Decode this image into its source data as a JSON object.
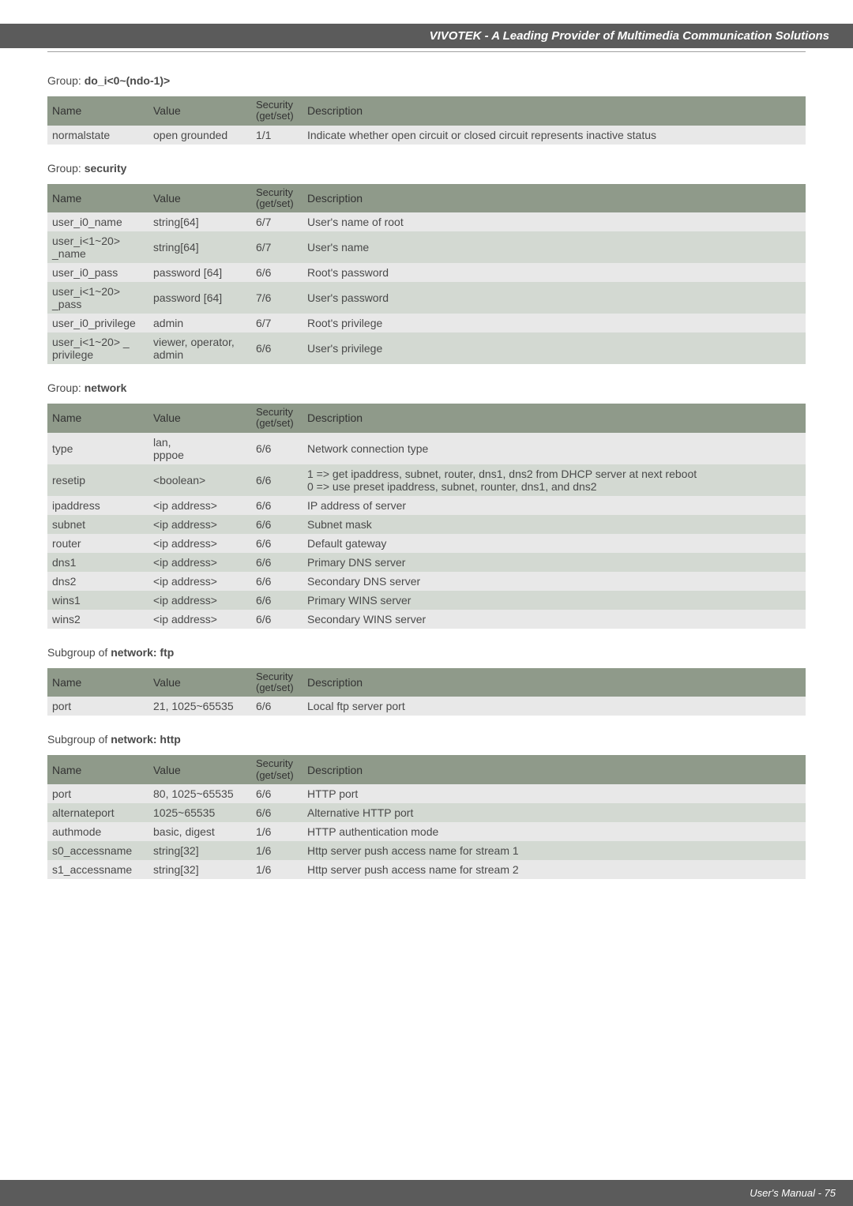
{
  "header": {
    "title": "VIVOTEK - A Leading Provider of Multimedia Communication Solutions"
  },
  "footer": {
    "text": "User's Manual - 75"
  },
  "column_headers": {
    "name": "Name",
    "value": "Value",
    "security": "Security (get/set)",
    "description": "Description"
  },
  "groups": [
    {
      "label": "Group:",
      "name": "do_i<0~(ndo-1)>",
      "rows": [
        {
          "name": "normalstate",
          "value": "open grounded",
          "security": "1/1",
          "description": "Indicate whether open circuit or closed circuit represents inactive status"
        }
      ]
    },
    {
      "label": "Group:",
      "name": "security",
      "rows": [
        {
          "name": "user_i0_name",
          "value": "string[64]",
          "security": "6/7",
          "description": "User's name of root"
        },
        {
          "name": "user_i<1~20> _name",
          "value": "string[64]",
          "security": "6/7",
          "description": "User's name"
        },
        {
          "name": "user_i0_pass",
          "value": "password [64]",
          "security": "6/6",
          "description": "Root's password"
        },
        {
          "name": "user_i<1~20> _pass",
          "value": "password [64]",
          "security": "7/6",
          "description": "User's password"
        },
        {
          "name": "user_i0_privilege",
          "value": "admin",
          "security": "6/7",
          "description": "Root's privilege"
        },
        {
          "name": "user_i<1~20> _ privilege",
          "value": "viewer, operator, admin",
          "security": "6/6",
          "description": "User's privilege"
        }
      ]
    },
    {
      "label": "Group:",
      "name": "network",
      "rows": [
        {
          "name": "type",
          "value": "lan,\npppoe",
          "security": "6/6",
          "description": "Network connection type"
        },
        {
          "name": "resetip",
          "value": "<boolean>",
          "security": "6/6",
          "description": "1 => get ipaddress, subnet, router, dns1, dns2 from DHCP server at next reboot\n0 => use preset ipaddress, subnet, rounter, dns1, and dns2"
        },
        {
          "name": "ipaddress",
          "value": "<ip address>",
          "security": "6/6",
          "description": "IP address of server"
        },
        {
          "name": "subnet",
          "value": "<ip address>",
          "security": "6/6",
          "description": "Subnet mask"
        },
        {
          "name": "router",
          "value": "<ip address>",
          "security": "6/6",
          "description": "Default gateway"
        },
        {
          "name": "dns1",
          "value": "<ip address>",
          "security": "6/6",
          "description": "Primary DNS server"
        },
        {
          "name": "dns2",
          "value": "<ip address>",
          "security": "6/6",
          "description": "Secondary DNS server"
        },
        {
          "name": "wins1",
          "value": "<ip address>",
          "security": "6/6",
          "description": "Primary WINS server"
        },
        {
          "name": "wins2",
          "value": "<ip address>",
          "security": "6/6",
          "description": "Secondary WINS server"
        }
      ]
    },
    {
      "label": "Subgroup of",
      "name": "network: ftp",
      "rows": [
        {
          "name": "port",
          "value": "21, 1025~65535",
          "security": "6/6",
          "description": "Local ftp server port"
        }
      ]
    },
    {
      "label": "Subgroup of",
      "name": "network: http",
      "rows": [
        {
          "name": "port",
          "value": "80, 1025~65535",
          "security": "6/6",
          "description": "HTTP port"
        },
        {
          "name": "alternateport",
          "value": "1025~65535",
          "security": "6/6",
          "description": "Alternative HTTP port"
        },
        {
          "name": "authmode",
          "value": "basic, digest",
          "security": "1/6",
          "description": "HTTP authentication mode"
        },
        {
          "name": "s0_accessname",
          "value": "string[32]",
          "security": "1/6",
          "description": "Http server push access name for stream 1"
        },
        {
          "name": "s1_accessname",
          "value": "string[32]",
          "security": "1/6",
          "description": "Http server push access name for stream 2"
        }
      ]
    }
  ]
}
